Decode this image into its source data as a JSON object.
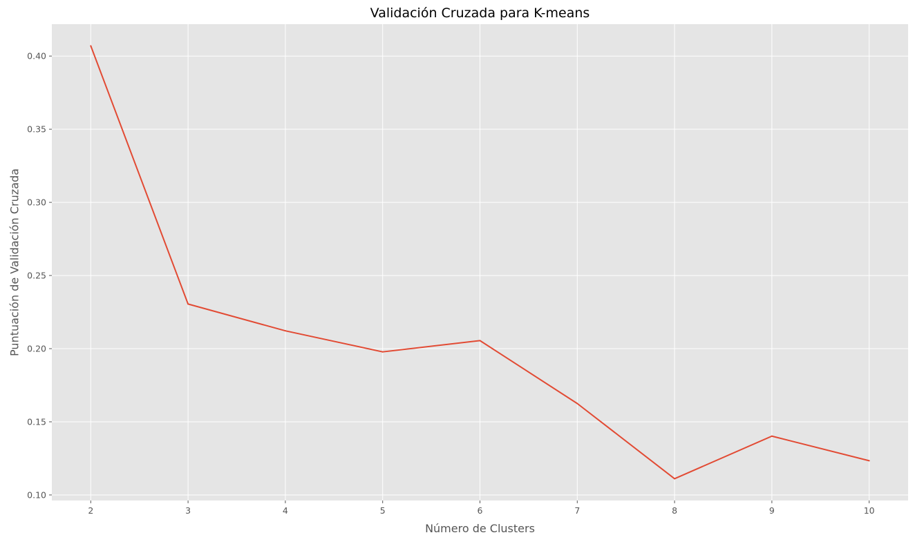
{
  "chart_data": {
    "type": "line",
    "title": "Validación Cruzada para K-means",
    "xlabel": "Número de Clusters",
    "ylabel": "Puntuación de Validación Cruzada",
    "x": [
      2,
      3,
      4,
      5,
      6,
      7,
      8,
      9,
      10
    ],
    "series": [
      {
        "values": [
          0.407,
          0.2305,
          0.2122,
          0.1978,
          0.2055,
          0.1625,
          0.1111,
          0.1402,
          0.1234
        ]
      }
    ],
    "xticks": [
      "2",
      "3",
      "4",
      "5",
      "6",
      "7",
      "8",
      "9",
      "10"
    ],
    "yticks": [
      "0.10",
      "0.15",
      "0.20",
      "0.25",
      "0.30",
      "0.35",
      "0.40"
    ],
    "xlim": [
      1.6,
      10.4
    ],
    "ylim": [
      0.0962,
      0.4218
    ],
    "grid": true,
    "colors": {
      "line": "#E24A33",
      "plot_background": "#E5E5E5",
      "grid": "#FFFFFF"
    }
  }
}
